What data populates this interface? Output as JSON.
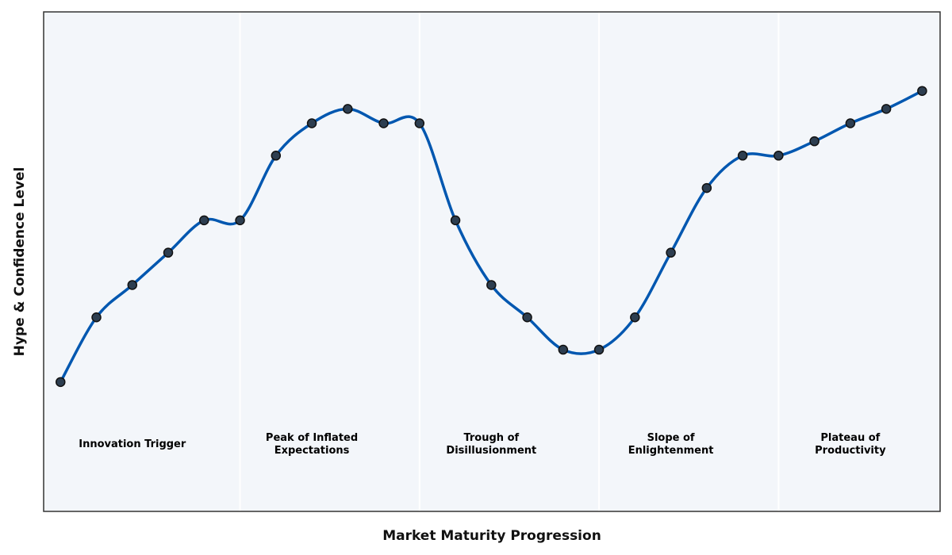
{
  "chart_data": {
    "type": "line",
    "title": "",
    "xlabel": "Market Maturity Progression",
    "ylabel": "Hype & Confidence Level",
    "x": [
      0,
      1,
      2,
      3,
      4,
      5,
      6,
      7,
      8,
      9,
      10,
      11,
      12,
      13,
      14,
      15,
      16,
      17,
      18,
      19,
      20,
      21,
      22,
      23,
      24
    ],
    "series": [
      {
        "values": [
          25,
          43,
          52,
          61,
          70,
          70,
          88,
          97,
          101,
          97,
          97,
          70,
          52,
          43,
          34,
          34,
          43,
          61,
          79,
          88,
          88,
          92,
          97,
          101,
          106
        ]
      }
    ],
    "xlim": [
      -0.47,
      24.5
    ],
    "ylim": [
      -11,
      128
    ],
    "grid": false,
    "legend": "none",
    "phases": [
      {
        "label_lines": [
          "Innovation Trigger"
        ],
        "start": -0.47,
        "end": 5.0,
        "center": 2.0
      },
      {
        "label_lines": [
          "Peak of Inflated",
          "Expectations"
        ],
        "start": 5.0,
        "end": 10.0,
        "center": 7.0
      },
      {
        "label_lines": [
          "Trough of",
          "Disillusionment"
        ],
        "start": 10.0,
        "end": 15.0,
        "center": 12.0
      },
      {
        "label_lines": [
          "Slope of",
          "Enlightenment"
        ],
        "start": 15.0,
        "end": 20.0,
        "center": 17.0
      },
      {
        "label_lines": [
          "Plateau of",
          "Productivity"
        ],
        "start": 20.0,
        "end": 24.5,
        "center": 22.0
      }
    ],
    "phase_label_y": 8,
    "colors": {
      "line": "#0057b0",
      "marker_fill": "#2d3e50",
      "marker_edge": "#111111",
      "phase_background": "#f3f6fa",
      "phase_divider": "#ffffff",
      "frame": "#333333"
    }
  }
}
